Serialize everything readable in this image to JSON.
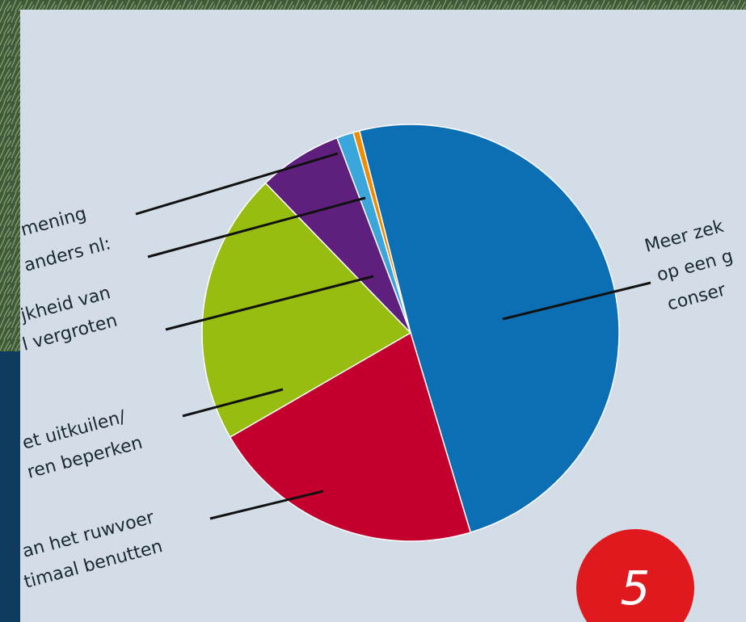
{
  "chart_data": {
    "type": "pie",
    "categories": [
      [
        "Meer zek",
        "op een g",
        "conser"
      ],
      [
        "an het ruwvoer",
        "timaal benutten"
      ],
      [
        "et uitkuilen/",
        "ren beperken"
      ],
      [
        "jkheid van",
        "l vergroten"
      ],
      [
        "anders nl:"
      ],
      [
        "mening"
      ]
    ],
    "values": [
      49.3,
      21.3,
      21.1,
      6.5,
      1.3,
      0.5
    ],
    "colors": [
      "#0d6fb3",
      "#c4002f",
      "#97bd10",
      "#5e1f7d",
      "#3aa6dc",
      "#f08c00"
    ]
  },
  "badge": "5"
}
